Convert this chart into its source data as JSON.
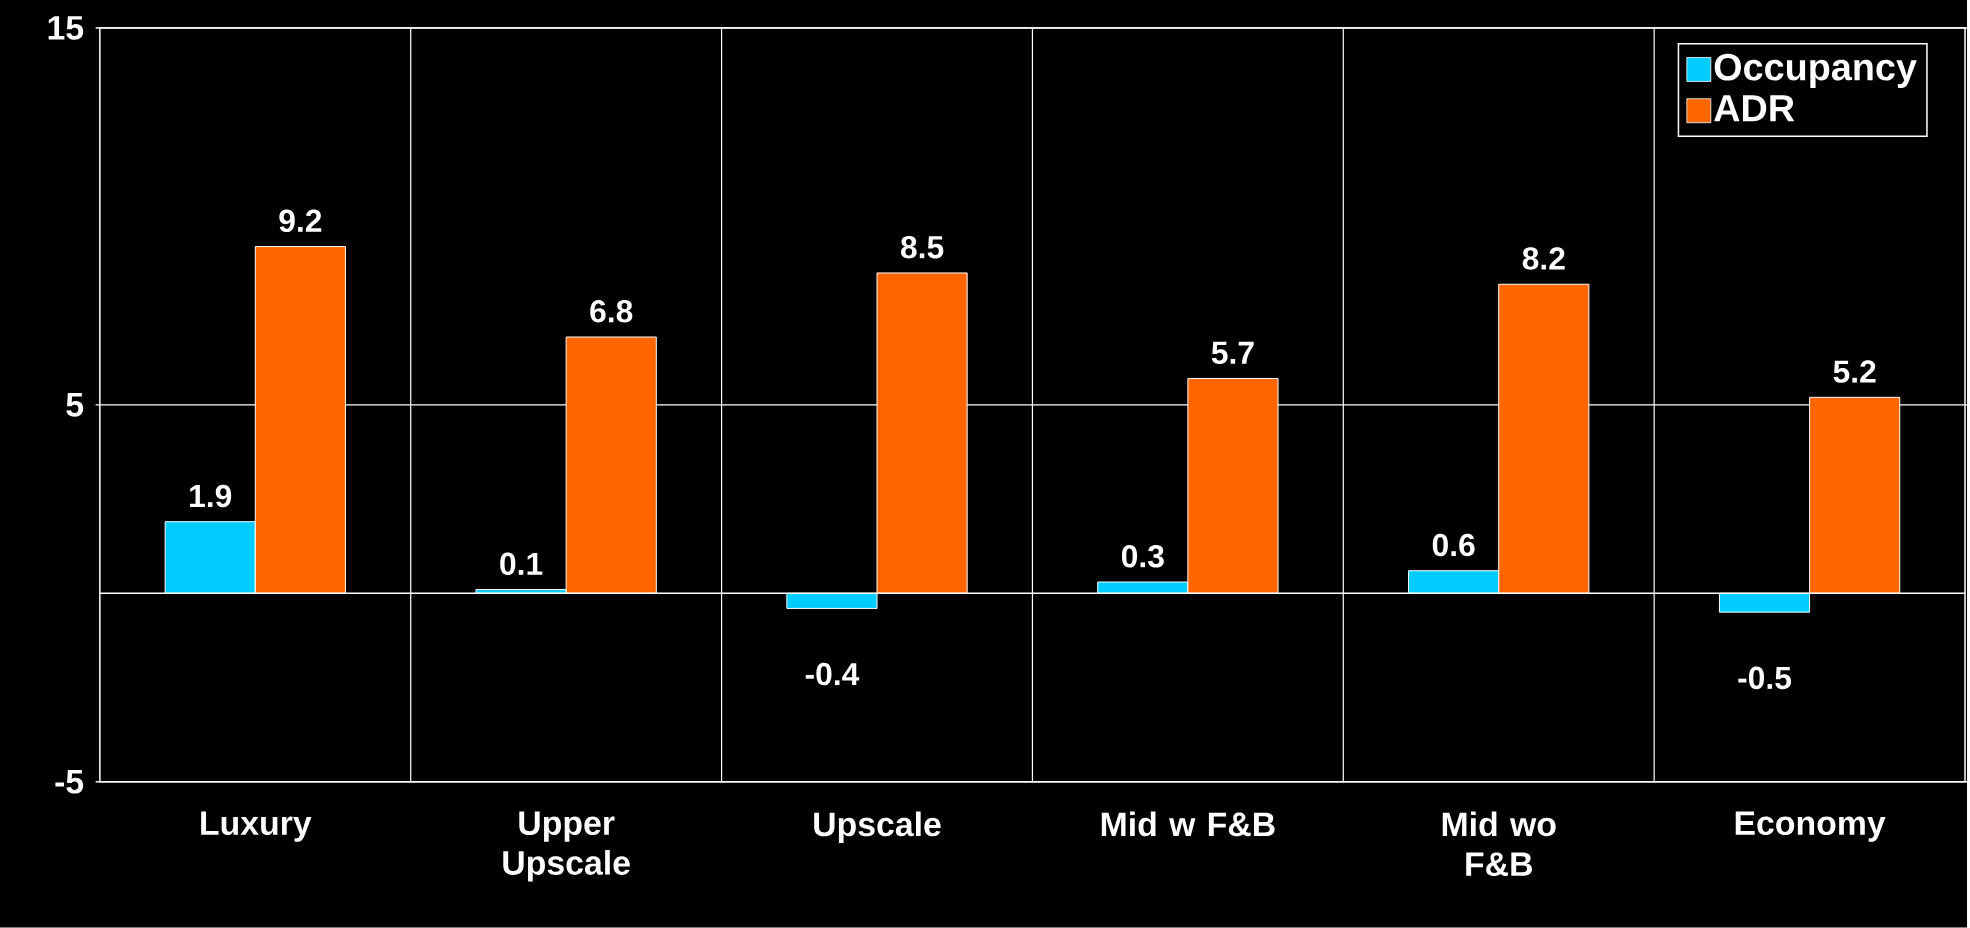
{
  "chart_data": {
    "type": "bar",
    "categories": [
      "Luxury",
      "Upper Upscale",
      "Upscale",
      "Mid w F&B",
      "Mid wo F&B",
      "Economy"
    ],
    "series": [
      {
        "name": "Occupancy",
        "color": "#00ccff",
        "values": [
          1.9,
          0.1,
          -0.4,
          0.3,
          0.6,
          -0.5
        ]
      },
      {
        "name": "ADR",
        "color": "#ff6600",
        "values": [
          9.2,
          6.8,
          8.5,
          5.7,
          8.2,
          5.2
        ]
      }
    ],
    "ylim": [
      -5,
      15
    ],
    "yticks": [
      -5,
      5,
      15
    ],
    "grid": true,
    "legend": "top right",
    "data_labels": true
  }
}
